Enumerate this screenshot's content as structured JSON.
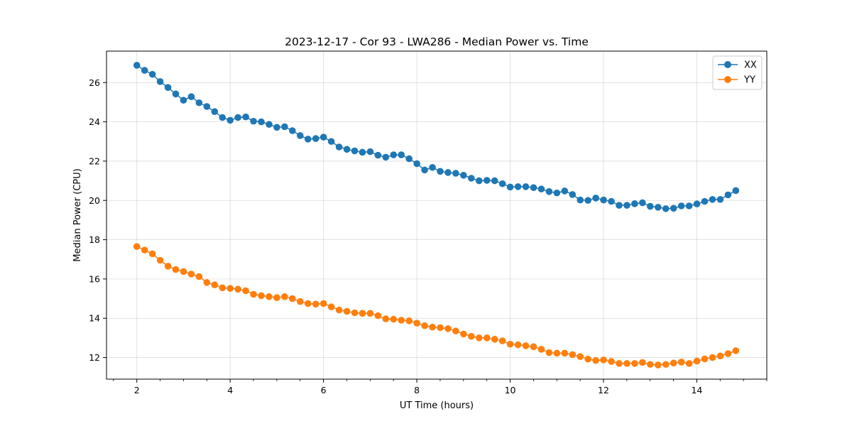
{
  "chart_data": {
    "type": "line",
    "title": "2023-12-17 - Cor 93 - LWA286 - Median Power vs. Time",
    "xlabel": "UT Time (hours)",
    "ylabel": "Median Power (CPU)",
    "xlim": [
      1.35,
      15.5
    ],
    "ylim": [
      10.9,
      27.6
    ],
    "xticks": [
      2,
      4,
      6,
      8,
      10,
      12,
      14
    ],
    "xminor_step": 0.5,
    "yticks": [
      12,
      14,
      16,
      18,
      20,
      22,
      24,
      26
    ],
    "grid": true,
    "legend_position": "top-right",
    "x_start": 2.0,
    "x_step": 0.1667,
    "series": [
      {
        "name": "XX",
        "color": "#1f77b4",
        "values": [
          26.88,
          26.62,
          26.42,
          26.05,
          25.75,
          25.42,
          25.1,
          25.28,
          24.97,
          24.78,
          24.52,
          24.22,
          24.08,
          24.22,
          24.25,
          24.03,
          24.0,
          23.87,
          23.72,
          23.75,
          23.55,
          23.3,
          23.12,
          23.15,
          23.22,
          23.0,
          22.72,
          22.6,
          22.52,
          22.45,
          22.48,
          22.3,
          22.2,
          22.32,
          22.32,
          22.12,
          21.87,
          21.55,
          21.68,
          21.48,
          21.42,
          21.38,
          21.28,
          21.13,
          21.0,
          21.02,
          21.0,
          20.85,
          20.68,
          20.7,
          20.7,
          20.65,
          20.58,
          20.45,
          20.38,
          20.48,
          20.3,
          20.02,
          20.0,
          20.12,
          20.02,
          19.95,
          19.75,
          19.75,
          19.83,
          19.88,
          19.7,
          19.65,
          19.58,
          19.6,
          19.72,
          19.72,
          19.82,
          19.95,
          20.05,
          20.05,
          20.28,
          20.5
        ]
      },
      {
        "name": "YY",
        "color": "#ff7f0e",
        "values": [
          17.65,
          17.47,
          17.28,
          16.95,
          16.65,
          16.48,
          16.38,
          16.25,
          16.12,
          15.82,
          15.7,
          15.55,
          15.52,
          15.48,
          15.4,
          15.22,
          15.15,
          15.1,
          15.05,
          15.1,
          15.0,
          14.85,
          14.75,
          14.72,
          14.75,
          14.58,
          14.42,
          14.35,
          14.28,
          14.25,
          14.25,
          14.13,
          13.97,
          13.95,
          13.9,
          13.87,
          13.75,
          13.62,
          13.55,
          13.52,
          13.47,
          13.35,
          13.2,
          13.08,
          13.0,
          13.0,
          12.93,
          12.85,
          12.68,
          12.65,
          12.6,
          12.55,
          12.42,
          12.25,
          12.22,
          12.22,
          12.15,
          12.05,
          11.92,
          11.85,
          11.88,
          11.8,
          11.7,
          11.7,
          11.7,
          11.75,
          11.65,
          11.62,
          11.65,
          11.72,
          11.77,
          11.7,
          11.82,
          11.93,
          12.0,
          12.08,
          12.2,
          12.35
        ]
      }
    ]
  }
}
